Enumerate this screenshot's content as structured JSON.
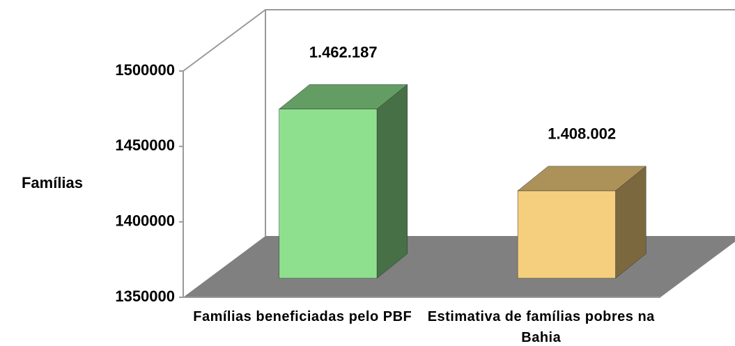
{
  "chart_data": {
    "type": "bar3d",
    "y_label": "Famílias",
    "categories": [
      "Famílias beneficiadas pelo PBF",
      "Estimativa de famílias pobres na Bahia"
    ],
    "values": [
      1462187,
      1408002
    ],
    "value_labels": [
      "1.462.187",
      "1.408.002"
    ],
    "colors": [
      "#8ee08e",
      "#f5cf7e"
    ],
    "ylim": [
      1350000,
      1500000
    ],
    "yticks": [
      1350000,
      1400000,
      1450000,
      1500000
    ]
  }
}
